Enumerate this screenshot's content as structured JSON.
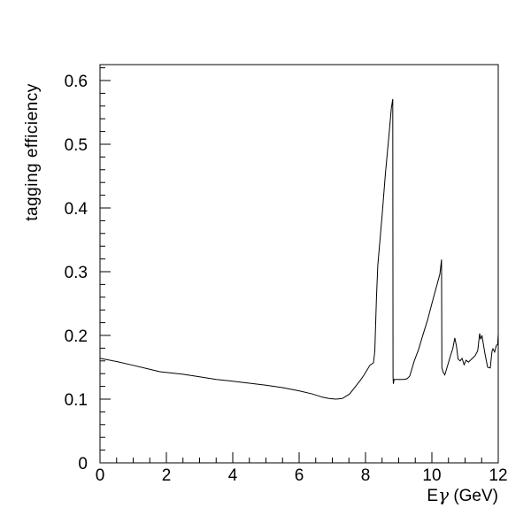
{
  "figure": {
    "background": "#ffffff"
  },
  "chart_data": {
    "type": "line",
    "title": "",
    "ylabel": "tagging efficiency",
    "xlabel": "Eγ (GeV)",
    "xlabel_parts": {
      "prefix": "E",
      "gamma": "γ",
      "suffix": " (GeV)"
    },
    "grid": false,
    "legend": "none",
    "frame_color": "#000000",
    "line_color": "#000000",
    "x_axis": {
      "min": 0,
      "max": 12,
      "major_ticks": [
        0,
        2,
        4,
        6,
        8,
        10,
        12
      ],
      "tick_labels": [
        "0",
        "2",
        "4",
        "6",
        "8",
        "10",
        "12"
      ],
      "minor_step": 0.5
    },
    "y_axis": {
      "min": 0,
      "max": 0.625,
      "major_ticks": [
        0,
        0.1,
        0.2,
        0.3,
        0.4,
        0.5,
        0.6
      ],
      "tick_labels": [
        "0",
        "0.1",
        "0.2",
        "0.3",
        "0.4",
        "0.5",
        "0.6"
      ],
      "minor_step": 0.02
    },
    "series": [
      {
        "name": "tagging efficiency",
        "points": [
          [
            0,
            0.164
          ],
          [
            0.5,
            0.159
          ],
          [
            1.0,
            0.153
          ],
          [
            1.4,
            0.148
          ],
          [
            1.8,
            0.143
          ],
          [
            2.5,
            0.139
          ],
          [
            3.0,
            0.135
          ],
          [
            3.5,
            0.131
          ],
          [
            4.0,
            0.128
          ],
          [
            4.5,
            0.125
          ],
          [
            5.0,
            0.122
          ],
          [
            5.5,
            0.118
          ],
          [
            6.0,
            0.113
          ],
          [
            6.4,
            0.108
          ],
          [
            6.7,
            0.103
          ],
          [
            6.9,
            0.101
          ],
          [
            7.1,
            0.1
          ],
          [
            7.3,
            0.101
          ],
          [
            7.52,
            0.108
          ],
          [
            7.73,
            0.122
          ],
          [
            7.85,
            0.13
          ],
          [
            7.97,
            0.139
          ],
          [
            8.13,
            0.153
          ],
          [
            8.24,
            0.157
          ],
          [
            8.28,
            0.175
          ],
          [
            8.33,
            0.26
          ],
          [
            8.37,
            0.31
          ],
          [
            8.5,
            0.389
          ],
          [
            8.6,
            0.454
          ],
          [
            8.7,
            0.511
          ],
          [
            8.78,
            0.557
          ],
          [
            8.82,
            0.571
          ],
          [
            8.83,
            0.135
          ],
          [
            8.84,
            0.124
          ],
          [
            8.86,
            0.131
          ],
          [
            9.0,
            0.131
          ],
          [
            9.15,
            0.131
          ],
          [
            9.25,
            0.132
          ],
          [
            9.33,
            0.136
          ],
          [
            9.47,
            0.16
          ],
          [
            9.6,
            0.178
          ],
          [
            9.73,
            0.201
          ],
          [
            9.87,
            0.224
          ],
          [
            10.0,
            0.25
          ],
          [
            10.13,
            0.275
          ],
          [
            10.24,
            0.296
          ],
          [
            10.29,
            0.319
          ],
          [
            10.3,
            0.149
          ],
          [
            10.34,
            0.142
          ],
          [
            10.39,
            0.138
          ],
          [
            10.47,
            0.152
          ],
          [
            10.56,
            0.168
          ],
          [
            10.63,
            0.179
          ],
          [
            10.69,
            0.196
          ],
          [
            10.74,
            0.183
          ],
          [
            10.79,
            0.163
          ],
          [
            10.85,
            0.16
          ],
          [
            10.91,
            0.164
          ],
          [
            10.97,
            0.154
          ],
          [
            11.03,
            0.161
          ],
          [
            11.1,
            0.158
          ],
          [
            11.2,
            0.163
          ],
          [
            11.3,
            0.168
          ],
          [
            11.38,
            0.176
          ],
          [
            11.44,
            0.203
          ],
          [
            11.47,
            0.194
          ],
          [
            11.51,
            0.2
          ],
          [
            11.6,
            0.171
          ],
          [
            11.68,
            0.15
          ],
          [
            11.76,
            0.149
          ],
          [
            11.81,
            0.175
          ],
          [
            11.84,
            0.179
          ],
          [
            11.89,
            0.174
          ],
          [
            11.94,
            0.184
          ],
          [
            11.98,
            0.186
          ],
          [
            12.0,
            0.202
          ]
        ]
      }
    ]
  }
}
